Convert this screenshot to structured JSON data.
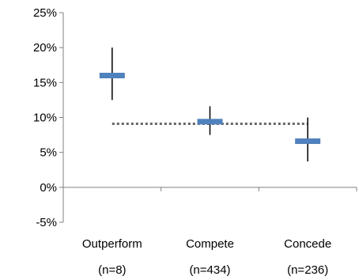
{
  "chart_data": {
    "type": "errorbar",
    "title": "",
    "xlabel": "",
    "ylabel": "",
    "ylim": [
      -5,
      25
    ],
    "y_tick_values": [
      -5,
      0,
      5,
      10,
      15,
      20,
      25
    ],
    "y_tick_labels": [
      "-5%",
      "0%",
      "5%",
      "10%",
      "15%",
      "20%",
      "25%"
    ],
    "categories": [
      {
        "label": "Outperform",
        "n_label": "(n=8)",
        "value": 16.0,
        "low": 12.5,
        "high": 20.0
      },
      {
        "label": "Compete",
        "n_label": "(n=434)",
        "value": 9.4,
        "low": 7.5,
        "high": 11.6
      },
      {
        "label": "Concede",
        "n_label": "(n=236)",
        "value": 6.6,
        "low": 3.7,
        "high": 10.0
      }
    ],
    "reference_line": {
      "value": 9.1,
      "style": "dotted"
    },
    "grid": false,
    "legend": "none",
    "colors": {
      "marker": "#4F81BD",
      "whisker": "#000000",
      "reference": "#666666",
      "axis": "#808080"
    }
  }
}
